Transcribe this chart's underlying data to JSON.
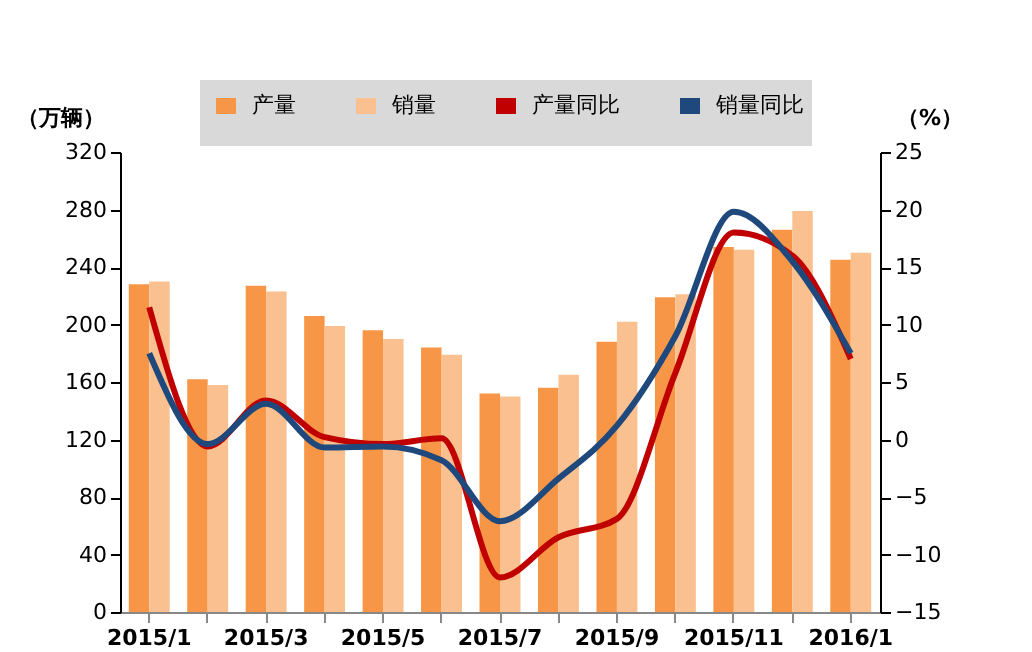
{
  "chart_data": {
    "type": "bar",
    "categories": [
      "2015/1",
      null,
      "2015/3",
      null,
      "2015/5",
      null,
      "2015/7",
      null,
      "2015/9",
      null,
      "2015/11",
      null,
      "2016/1"
    ],
    "ylabel": "（万辆）",
    "y2label": "（%）",
    "ylim": [
      0,
      320
    ],
    "yticks": [
      0,
      40,
      80,
      120,
      160,
      200,
      240,
      280,
      320
    ],
    "y2lim": [
      -15,
      25
    ],
    "y2ticks": [
      -15,
      -10,
      -5,
      0,
      5,
      10,
      15,
      20,
      25
    ],
    "series": [
      {
        "name": "产量",
        "color": "#f79646",
        "values": [
          228,
          162,
          227,
          206,
          196,
          184,
          152,
          156,
          188,
          219,
          254,
          266,
          245
        ]
      },
      {
        "name": "销量",
        "color": "#fac090",
        "values": [
          230,
          158,
          223,
          199,
          190,
          179,
          150,
          165,
          202,
          221,
          252,
          279,
          250
        ]
      },
      {
        "name": "产量同比",
        "type": "line",
        "axis": "y2",
        "color": "#c00000",
        "values": [
          11.5,
          -0.6,
          3.4,
          0.2,
          -0.4,
          0.1,
          -12,
          -8.5,
          -6.9,
          5.8,
          18,
          16,
          7
        ]
      },
      {
        "name": "销量同比",
        "type": "line",
        "axis": "y2",
        "color": "#1f497d",
        "values": [
          7.5,
          -0.4,
          3.1,
          -0.7,
          -0.6,
          -1.8,
          -7.1,
          -3.4,
          1.2,
          9,
          19.8,
          15.5,
          7.5
        ]
      }
    ],
    "legend": "top",
    "grid": false
  }
}
